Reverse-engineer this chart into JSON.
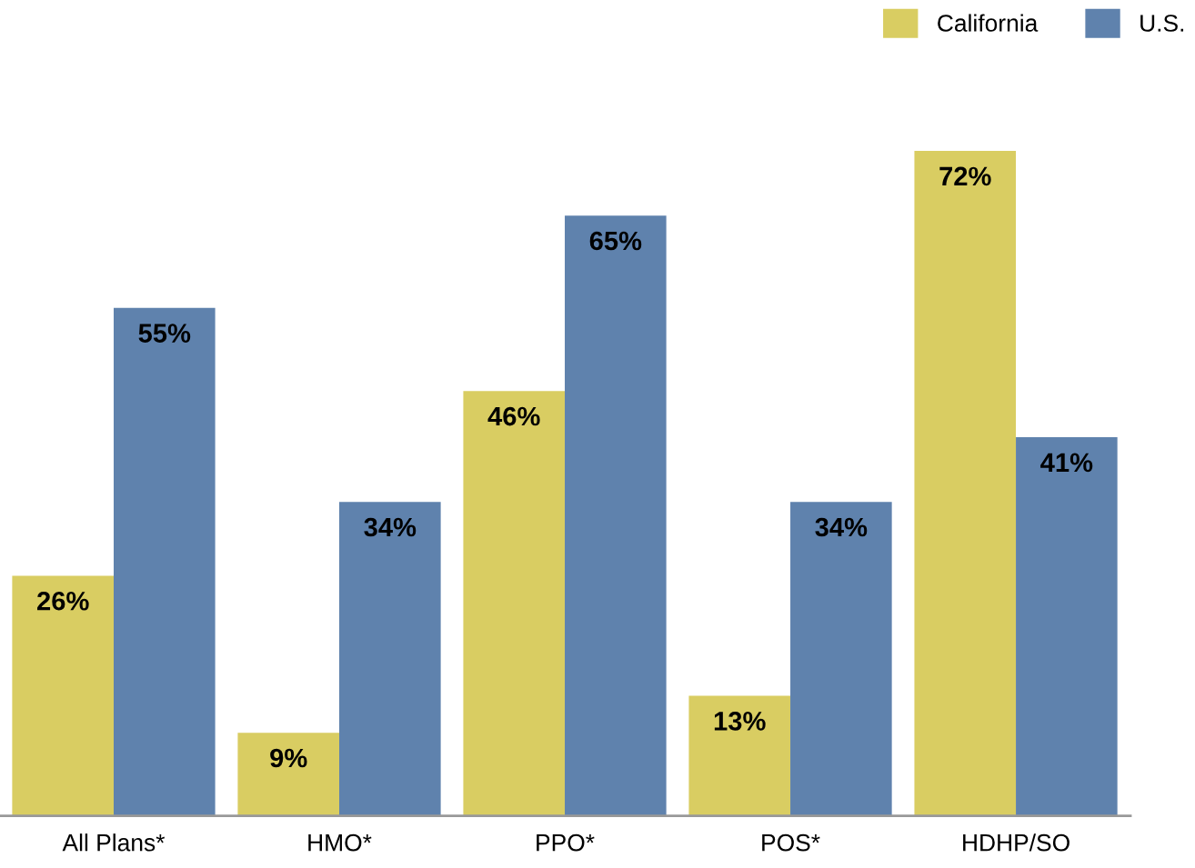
{
  "chart_data": {
    "type": "bar",
    "categories": [
      "All Plans*",
      "HMO*",
      "PPO*",
      "POS*",
      "HDHP/SO"
    ],
    "series": [
      {
        "name": "California",
        "color": "#d9cd62",
        "values": [
          26,
          9,
          46,
          13,
          72
        ],
        "value_labels": [
          "26%",
          "9%",
          "46%",
          "13%",
          "72%"
        ]
      },
      {
        "name": "U.S.",
        "color": "#5f82ad",
        "values": [
          55,
          34,
          65,
          34,
          41
        ],
        "value_labels": [
          "55%",
          "34%",
          "65%",
          "34%",
          "41%"
        ]
      }
    ],
    "legend": "top right",
    "tick_labels": "x",
    "grid": false
  }
}
